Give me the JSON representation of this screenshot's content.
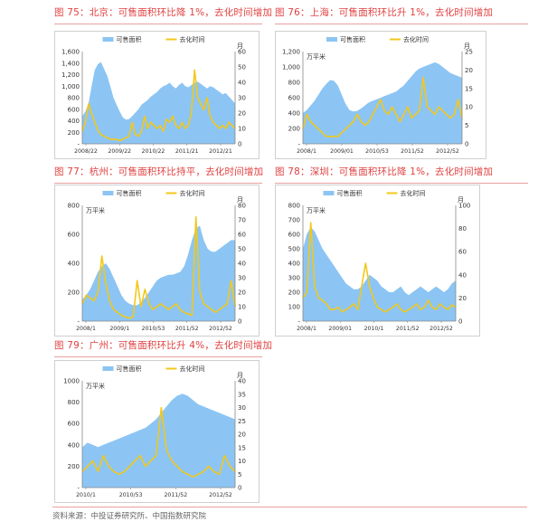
{
  "source_note": "资料来源：中投证券研究所、中国指数研究院",
  "colors": {
    "area": "#8cc5f4",
    "line": "#f2c81a",
    "caption": "#e04040"
  },
  "chart_data": [
    {
      "id": "c75",
      "type": "area+line",
      "title": "图 75：北京：可售面积环比降 1%，去化时间增加",
      "legend": [
        "可售面积",
        "去化时间"
      ],
      "legend_placement": "top-center",
      "left_unit": "",
      "right_unit": "月",
      "left_ticks": [
        "1,600",
        "1,400",
        "1,200",
        "1,000",
        "800",
        "600",
        "400",
        "200",
        "-"
      ],
      "left_max": 1600,
      "right_ticks": [
        "60",
        "50",
        "40",
        "30",
        "20",
        "10",
        "0"
      ],
      "right_max": 60,
      "x_ticks": [
        "2008/22",
        "2009/22",
        "2010/22",
        "2011/21",
        "2012/21"
      ],
      "area_values": [
        480,
        560,
        700,
        1000,
        1280,
        1380,
        1420,
        1300,
        1180,
        1000,
        800,
        680,
        560,
        460,
        420,
        430,
        480,
        540,
        600,
        680,
        720,
        760,
        820,
        860,
        900,
        960,
        1000,
        1020,
        1060,
        1000,
        960,
        1020,
        1060,
        1000,
        980,
        1020,
        1060,
        1080,
        1040,
        1000,
        960,
        1000,
        980,
        940,
        900,
        860,
        880,
        820,
        760,
        700
      ],
      "line_values": [
        8,
        14,
        26,
        20,
        14,
        9,
        6,
        5,
        4,
        3,
        3,
        3,
        2,
        3,
        4,
        5,
        14,
        6,
        5,
        8,
        18,
        10,
        14,
        12,
        10,
        12,
        8,
        16,
        14,
        18,
        12,
        10,
        14,
        10,
        12,
        20,
        48,
        30,
        26,
        22,
        30,
        18,
        14,
        12,
        10,
        12,
        10,
        14,
        12,
        10
      ]
    },
    {
      "id": "c76",
      "type": "area+line",
      "title": "图 76：上海：可售面积环比升 1%，去化时间增加",
      "legend": [
        "可售面积",
        "去化时间"
      ],
      "legend_placement": "top-center",
      "left_unit": "万平米",
      "right_unit": "月",
      "left_ticks": [
        "1,200",
        "1,000",
        "800",
        "600",
        "400",
        "200",
        "-"
      ],
      "left_max": 1200,
      "right_ticks": [
        "25",
        "20",
        "15",
        "10",
        "5",
        "0"
      ],
      "right_max": 25,
      "x_ticks": [
        "2008/1",
        "2009/01",
        "2010/53",
        "2011/52",
        "2012/52"
      ],
      "area_values": [
        400,
        440,
        500,
        560,
        640,
        720,
        780,
        830,
        820,
        760,
        640,
        520,
        440,
        420,
        430,
        460,
        500,
        540,
        560,
        580,
        600,
        620,
        640,
        660,
        680,
        720,
        760,
        820,
        880,
        940,
        980,
        1000,
        1020,
        1040,
        1060,
        1040,
        1000,
        960,
        920,
        900,
        880,
        860
      ],
      "line_values": [
        4,
        8,
        6,
        5,
        4,
        3,
        2,
        2,
        2,
        2,
        3,
        4,
        5,
        6,
        8,
        6,
        5,
        6,
        8,
        10,
        12,
        9,
        8,
        10,
        8,
        6,
        8,
        10,
        7,
        8,
        9,
        18,
        10,
        9,
        8,
        10,
        9,
        8,
        7,
        8,
        12,
        7
      ]
    },
    {
      "id": "c77",
      "type": "area+line",
      "title": "图 77：杭州：可售面积环比持平，去化时间增加",
      "legend": [
        "可售面积",
        "去化时间"
      ],
      "legend_placement": "top-center",
      "left_unit": "万平米",
      "right_unit": "月",
      "left_ticks": [
        "800",
        "600",
        "400",
        "200",
        "-"
      ],
      "left_max": 800,
      "right_ticks": [
        "80",
        "70",
        "60",
        "50",
        "40",
        "30",
        "20",
        "10",
        "0"
      ],
      "right_max": 80,
      "x_ticks": [
        "2008/1",
        "2009/1",
        "2010/53",
        "2011/52",
        "2012/52"
      ],
      "area_values": [
        150,
        180,
        220,
        280,
        340,
        380,
        400,
        360,
        300,
        240,
        180,
        140,
        120,
        110,
        110,
        130,
        160,
        200,
        240,
        280,
        300,
        310,
        320,
        320,
        330,
        340,
        380,
        460,
        560,
        640,
        660,
        560,
        500,
        480,
        480,
        500,
        520,
        540,
        560,
        560
      ],
      "line_values": [
        12,
        18,
        16,
        14,
        20,
        45,
        26,
        14,
        8,
        6,
        4,
        3,
        2,
        3,
        28,
        10,
        22,
        12,
        8,
        10,
        12,
        10,
        8,
        10,
        12,
        8,
        6,
        5,
        4,
        72,
        20,
        12,
        10,
        8,
        6,
        8,
        10,
        12,
        28,
        10
      ]
    },
    {
      "id": "c78",
      "type": "area+line",
      "title": "图 78：深圳：可售面积环比降 1%，去化时间增加",
      "legend": [
        "可售面积",
        "去化时间"
      ],
      "legend_placement": "top-center",
      "left_unit": "万平米",
      "right_unit": "月",
      "left_ticks": [
        "800",
        "700",
        "600",
        "500",
        "400",
        "300",
        "200",
        "100",
        "-"
      ],
      "left_max": 800,
      "right_ticks": [
        "100",
        "80",
        "60",
        "40",
        "20",
        "0"
      ],
      "right_max": 100,
      "x_ticks": [
        "2008/1",
        "2009/01",
        "2010/1",
        "2011/52",
        "2012/52"
      ],
      "area_values": [
        500,
        600,
        650,
        620,
        560,
        500,
        460,
        420,
        380,
        340,
        300,
        260,
        240,
        220,
        220,
        240,
        280,
        320,
        300,
        280,
        240,
        220,
        200,
        200,
        220,
        240,
        200,
        180,
        200,
        220,
        240,
        220,
        200,
        220,
        240,
        220,
        200,
        220,
        260,
        280
      ],
      "line_values": [
        20,
        25,
        85,
        30,
        20,
        18,
        15,
        10,
        10,
        12,
        8,
        10,
        12,
        15,
        10,
        30,
        50,
        30,
        20,
        12,
        10,
        8,
        10,
        12,
        15,
        10,
        8,
        10,
        12,
        15,
        10,
        12,
        18,
        12,
        10,
        15,
        12,
        10,
        14,
        12
      ]
    },
    {
      "id": "c79",
      "type": "area+line",
      "title": "图 79：广州：可售面积环比升 4%，去化时间增加",
      "legend": [
        "可售面积",
        "去化时间"
      ],
      "legend_placement": "top-center",
      "left_unit": "万平米",
      "right_unit": "月",
      "left_ticks": [
        "1000",
        "800",
        "600",
        "400",
        "200",
        "-"
      ],
      "left_max": 1000,
      "right_ticks": [
        "40",
        "35",
        "30",
        "25",
        "20",
        "15",
        "10",
        "5",
        "0"
      ],
      "right_max": 40,
      "x_ticks": [
        "2010/1",
        "2010/53",
        "2011/52",
        "2012/52"
      ],
      "area_values": [
        380,
        420,
        400,
        380,
        400,
        420,
        440,
        460,
        480,
        500,
        520,
        540,
        560,
        600,
        640,
        700,
        760,
        820,
        860,
        880,
        860,
        820,
        780,
        760,
        740,
        720,
        700,
        680,
        660,
        640
      ],
      "line_values": [
        6,
        8,
        10,
        6,
        12,
        8,
        6,
        5,
        6,
        8,
        10,
        12,
        8,
        10,
        12,
        30,
        14,
        10,
        8,
        6,
        5,
        4,
        5,
        6,
        8,
        6,
        5,
        12,
        8,
        6
      ]
    }
  ]
}
